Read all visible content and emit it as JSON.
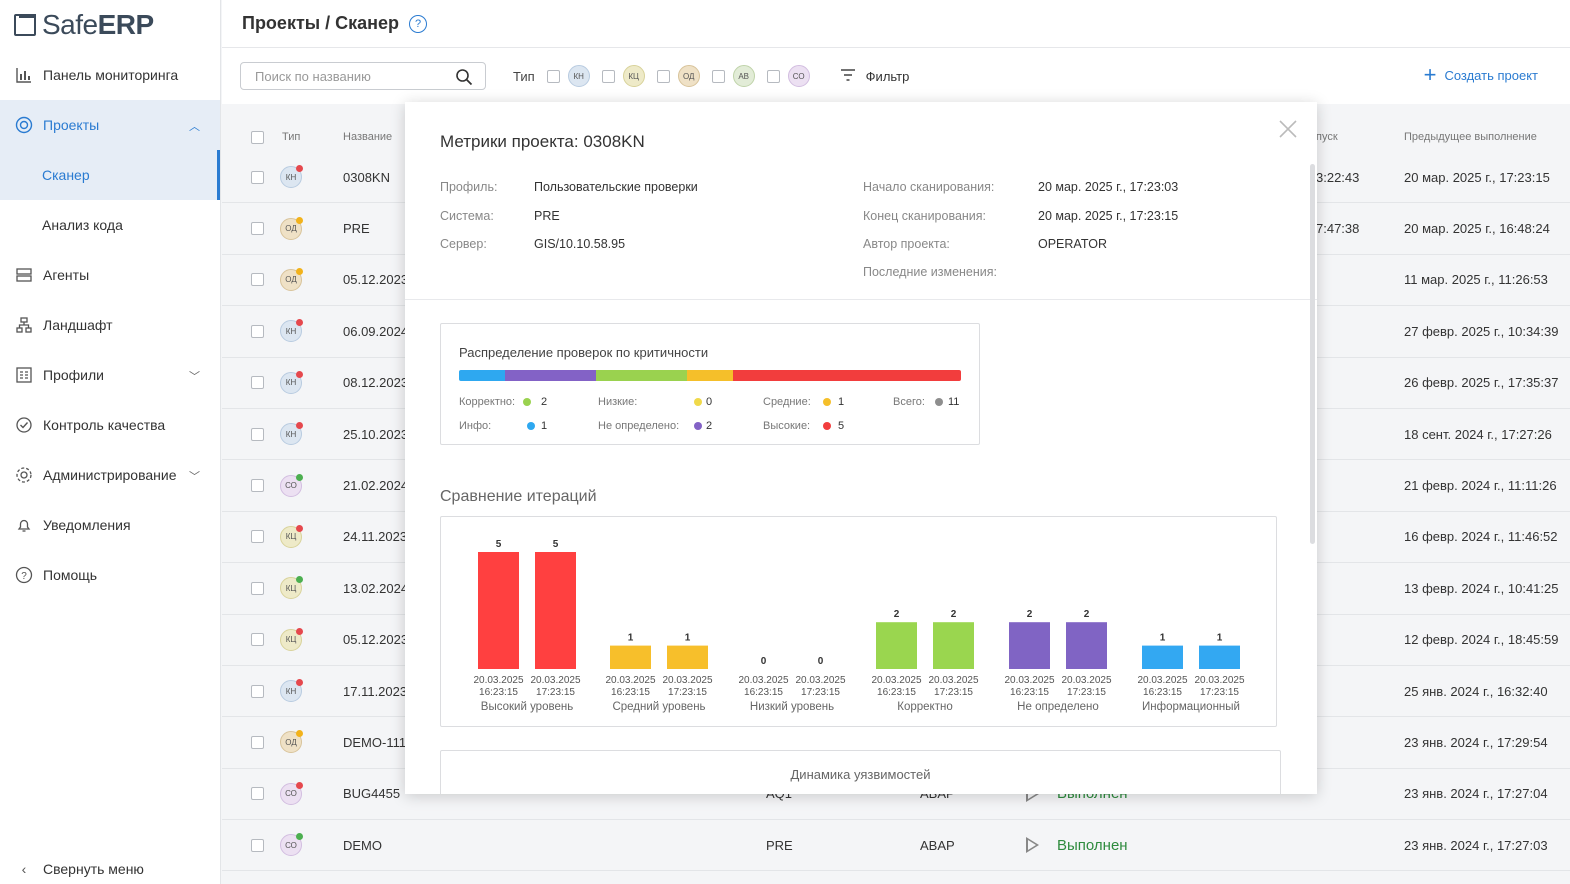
{
  "logo": {
    "prefix": "Safe",
    "bold": "ERP"
  },
  "sidebar": {
    "items": [
      {
        "label": "Панель мониторинга",
        "icon": "chart-icon"
      },
      {
        "label": "Проекты",
        "icon": "projects-icon"
      },
      {
        "label": "Сканер"
      },
      {
        "label": "Анализ кода"
      },
      {
        "label": "Агенты",
        "icon": "server-icon"
      },
      {
        "label": "Ландшафт",
        "icon": "network-icon"
      },
      {
        "label": "Профили",
        "icon": "profile-icon"
      },
      {
        "label": "Контроль качества",
        "icon": "check-icon"
      },
      {
        "label": "Администрирование",
        "icon": "gear-icon"
      },
      {
        "label": "Уведомления",
        "icon": "bell-icon"
      },
      {
        "label": "Помощь",
        "icon": "help-icon"
      }
    ],
    "collapse_label": "Свернуть меню"
  },
  "header": {
    "title": "Проекты / Сканер",
    "help": "?"
  },
  "toolbar": {
    "search_placeholder": "Поиск по названию",
    "type_label": "Тип",
    "types": [
      "КН",
      "КЦ",
      "ОД",
      "АВ",
      "СО"
    ],
    "filter_label": "Фильтр",
    "create_label": "Создать проект"
  },
  "table": {
    "columns": {
      "type": "Тип",
      "name": "Название",
      "last_run_fragment": "пуск",
      "prev": "Предыдущее выполнение"
    },
    "rows": [
      {
        "type": "КН",
        "dot": "#e5484d",
        "name": "0308KN",
        "last": "3:22:43",
        "prev": "20 мар. 2025 г., 17:23:15"
      },
      {
        "type": "ОД",
        "dot": "#f2b21b",
        "name": "PRE",
        "last": "7:47:38",
        "prev": "20 мар. 2025 г., 16:48:24"
      },
      {
        "type": "ОД",
        "dot": "#f2b21b",
        "name": "05.12.2023",
        "prev": "11 мар. 2025 г., 11:26:53"
      },
      {
        "type": "КН",
        "dot": "#e5484d",
        "name": "06.09.2024",
        "prev": "27 февр. 2025 г., 10:34:39"
      },
      {
        "type": "КН",
        "dot": "#e5484d",
        "name": "08.12.2023",
        "prev": "26 февр. 2025 г., 17:35:37"
      },
      {
        "type": "КН",
        "dot": "#e5484d",
        "name": "25.10.2023",
        "prev": "18 сент. 2024 г., 17:27:26"
      },
      {
        "type": "СО",
        "dot": "#4caf50",
        "name": "21.02.2024",
        "prev": "21 февр. 2024 г., 11:11:26"
      },
      {
        "type": "КЦ",
        "dot": "#e5484d",
        "name": "24.11.2023",
        "prev": "16 февр. 2024 г., 11:46:52"
      },
      {
        "type": "КЦ",
        "dot": "#4caf50",
        "name": "13.02.2024",
        "prev": "13 февр. 2024 г., 10:41:25"
      },
      {
        "type": "КЦ",
        "dot": "#e5484d",
        "name": "05.12.2023",
        "prev": "12 февр. 2024 г., 18:45:59"
      },
      {
        "type": "КН",
        "dot": "#e5484d",
        "name": "17.11.2023",
        "prev": "25 янв. 2024 г., 16:32:40"
      },
      {
        "type": "ОД",
        "dot": "#f2b21b",
        "name": "DEMO-111",
        "prev": "23 янв. 2024 г., 17:29:54"
      },
      {
        "type": "СО",
        "dot": "#e5484d",
        "name": "BUG4455",
        "sys": "AQ1",
        "lang": "ABAP",
        "status": "Выполнен",
        "prev": "23 янв. 2024 г., 17:27:04"
      },
      {
        "type": "СО",
        "dot": "#4caf50",
        "name": "DEMO",
        "sys": "PRE",
        "lang": "ABAP",
        "status": "Выполнен",
        "prev": "23 янв. 2024 г., 17:27:03"
      }
    ]
  },
  "modal": {
    "title": "Метрики проекта: 0308KN",
    "left": [
      {
        "k": "Профиль:",
        "v": "Пользовательские проверки"
      },
      {
        "k": "Система:",
        "v": "PRE"
      },
      {
        "k": "Сервер:",
        "v": "GIS/10.10.58.95"
      }
    ],
    "right": [
      {
        "k": "Начало сканирования:",
        "v": "20 мар. 2025 г., 17:23:03"
      },
      {
        "k": "Конец сканирования:",
        "v": "20 мар. 2025 г., 17:23:15"
      },
      {
        "k": "Автор проекта:",
        "v": "OPERATOR"
      },
      {
        "k": "Последние изменения:",
        "v": ""
      }
    ],
    "distribution": {
      "title": "Распределение проверок по критичности",
      "segments": [
        {
          "label": "Инфо:",
          "value": 1,
          "color": "#2ea8f0"
        },
        {
          "label": "Не определено:",
          "value": 2,
          "color": "#8362c6"
        },
        {
          "label": "Корректно:",
          "value": 2,
          "color": "#9ad24f"
        },
        {
          "label": "Средние:",
          "value": 1,
          "color": "#f5bf2a"
        },
        {
          "label": "Высокие:",
          "value": 5,
          "color": "#f23d3d"
        }
      ],
      "legend": [
        {
          "label": "Корректно:",
          "value": "2",
          "color": "#9ad24f"
        },
        {
          "label": "Низкие:",
          "value": "0",
          "color": "#f0d94a"
        },
        {
          "label": "Средние:",
          "value": "1",
          "color": "#f5bf2a"
        },
        {
          "label": "Всего:",
          "value": "11",
          "color": "#8e8e8e"
        },
        {
          "label": "Инфо:",
          "value": "1",
          "color": "#2ea8f0"
        },
        {
          "label": "Не определено:",
          "value": "2",
          "color": "#8362c6"
        },
        {
          "label": "Высокие:",
          "value": "5",
          "color": "#f23d3d"
        }
      ]
    },
    "comparison_title": "Сравнение итераций",
    "dynamics_title": "Динамика уязвимостей"
  },
  "chart_data": {
    "type": "bar",
    "categories": [
      "Высокий уровень",
      "Средний уровень",
      "Низкий уровень",
      "Корректно",
      "Не определено",
      "Информационный"
    ],
    "iterations": [
      "20.03.2025\n16:23:15",
      "20.03.2025\n17:23:15"
    ],
    "series": [
      {
        "values": [
          5,
          1,
          0,
          2,
          2,
          1
        ]
      },
      {
        "values": [
          5,
          1,
          0,
          2,
          2,
          1
        ]
      }
    ],
    "colors": [
      "#ff4040",
      "#f7bf2b",
      "#f0d94a",
      "#9ad64f",
      "#8064c4",
      "#33a8f2"
    ],
    "ylim": [
      0,
      5
    ]
  }
}
